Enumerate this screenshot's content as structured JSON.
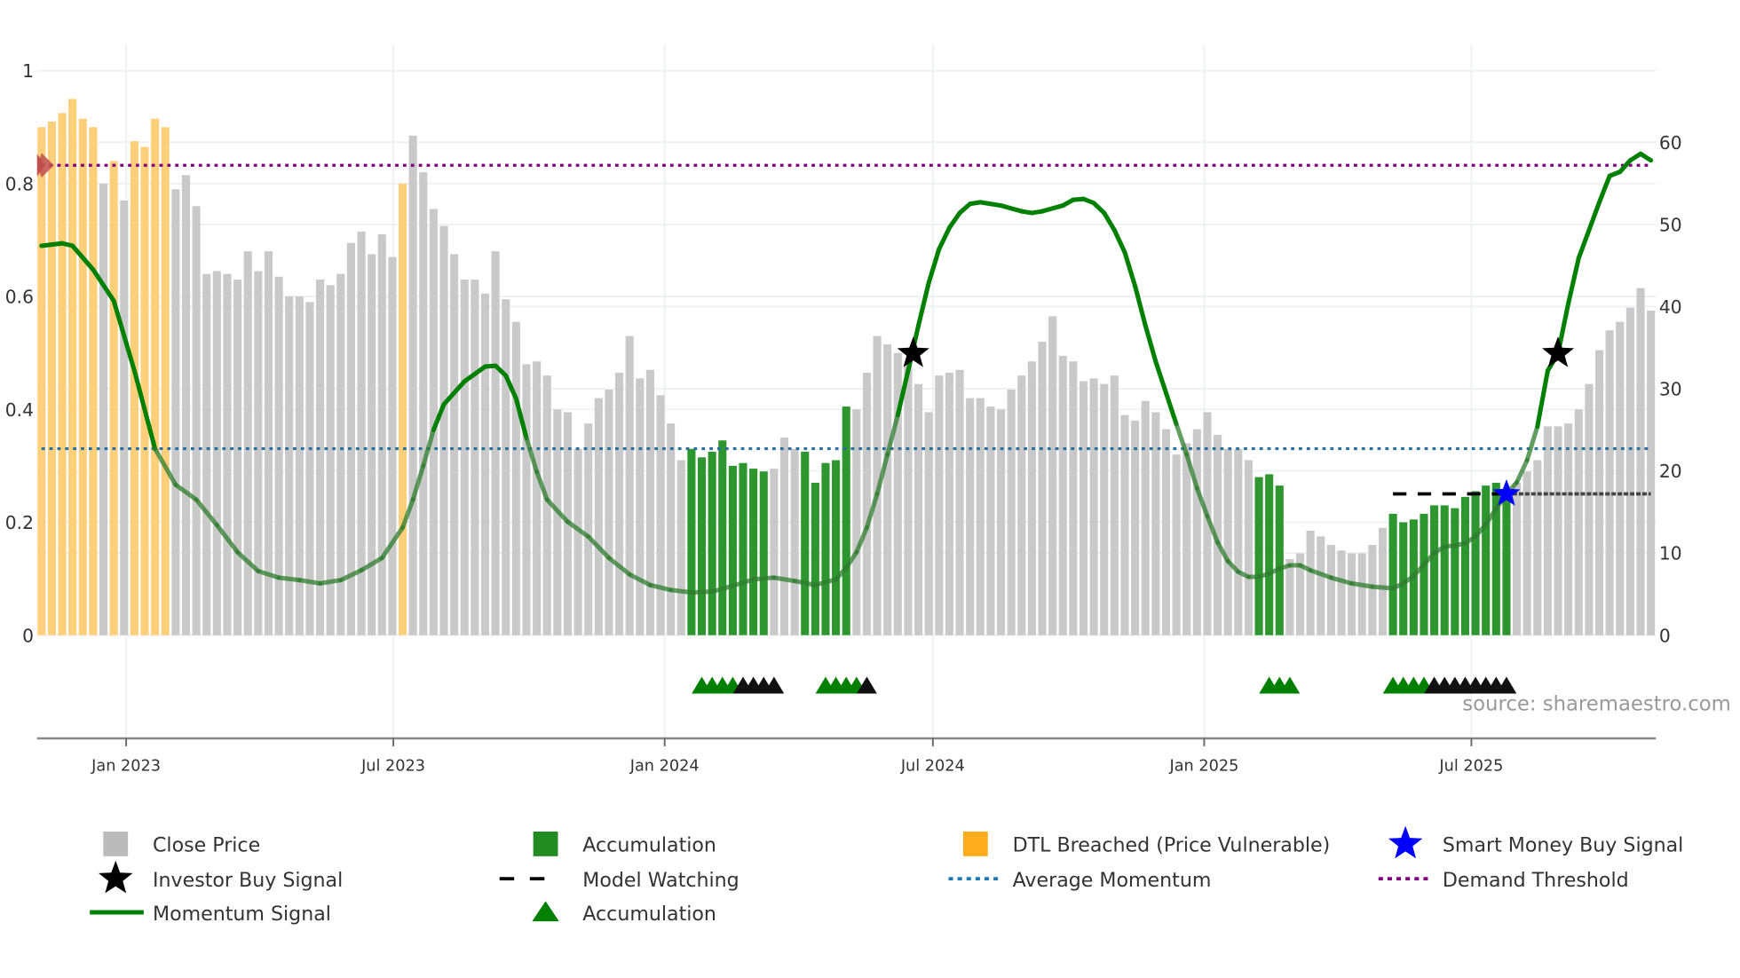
{
  "chart_data": {
    "type": "bar",
    "title": "",
    "source": "source: sharemaestro.com",
    "left_axis": {
      "ticks": [
        "0",
        "0.2",
        "0.4",
        "0.6",
        "0.8",
        "1"
      ],
      "range": [
        0,
        1
      ]
    },
    "right_axis": {
      "ticks": [
        "0",
        "10",
        "20",
        "30",
        "40",
        "50",
        "60"
      ],
      "range": [
        0,
        60
      ]
    },
    "x_axis": {
      "unit": "week index",
      "ticks": [
        {
          "label": "Jan 2023",
          "at": 8.2
        },
        {
          "label": "Jul 2023",
          "at": 34.1
        },
        {
          "label": "Jan 2024",
          "at": 60.4
        },
        {
          "label": "Jul 2024",
          "at": 86.4
        },
        {
          "label": "Jan 2025",
          "at": 112.7
        },
        {
          "label": "Jul 2025",
          "at": 138.6
        }
      ]
    },
    "bar_type_key": {
      "c": "Close Price",
      "a": "Accumulation",
      "d": "DTL Breached (Price Vulnerable)"
    },
    "bars": {
      "values": [
        0.9,
        0.91,
        0.925,
        0.95,
        0.915,
        0.9,
        0.8,
        0.84,
        0.77,
        0.875,
        0.865,
        0.915,
        0.9,
        0.79,
        0.815,
        0.76,
        0.64,
        0.645,
        0.64,
        0.63,
        0.68,
        0.645,
        0.68,
        0.635,
        0.6,
        0.6,
        0.59,
        0.63,
        0.62,
        0.64,
        0.695,
        0.715,
        0.675,
        0.71,
        0.67,
        0.8,
        0.885,
        0.82,
        0.755,
        0.725,
        0.675,
        0.63,
        0.63,
        0.605,
        0.68,
        0.595,
        0.555,
        0.48,
        0.485,
        0.46,
        0.4,
        0.395,
        0.33,
        0.375,
        0.42,
        0.435,
        0.465,
        0.53,
        0.455,
        0.47,
        0.425,
        0.375,
        0.31,
        0.33,
        0.315,
        0.325,
        0.345,
        0.3,
        0.305,
        0.295,
        0.29,
        0.295,
        0.35,
        0.33,
        0.325,
        0.27,
        0.305,
        0.31,
        0.405,
        0.4,
        0.465,
        0.53,
        0.515,
        0.5,
        0.48,
        0.445,
        0.395,
        0.46,
        0.465,
        0.47,
        0.42,
        0.42,
        0.405,
        0.4,
        0.435,
        0.46,
        0.485,
        0.52,
        0.565,
        0.495,
        0.485,
        0.45,
        0.455,
        0.445,
        0.46,
        0.39,
        0.38,
        0.415,
        0.395,
        0.365,
        0.32,
        0.34,
        0.365,
        0.395,
        0.355,
        0.33,
        0.33,
        0.31,
        0.28,
        0.285,
        0.265,
        0.135,
        0.145,
        0.185,
        0.175,
        0.16,
        0.15,
        0.145,
        0.145,
        0.16,
        0.19,
        0.215,
        0.2,
        0.205,
        0.215,
        0.23,
        0.23,
        0.225,
        0.245,
        0.255,
        0.265,
        0.27,
        0.25,
        0.27,
        0.29,
        0.31,
        0.37,
        0.37,
        0.375,
        0.4,
        0.445,
        0.505,
        0.54,
        0.555,
        0.58,
        0.615,
        0.575
      ],
      "types": "ddddddcdcddddccccccccccccccccccccccdcccccccccccccccccccccccccccaaaaaaaacccaaaaacccccccccccccccccccccccccccccccccccccccaaaccccccccccaaaaaaaaaaaacccccccccccccc"
    },
    "series": [
      {
        "name": "Momentum Signal",
        "axis": "right",
        "x": [
          0,
          2,
          3,
          5,
          7,
          9,
          11,
          13,
          15,
          17,
          19,
          21,
          23,
          25,
          27,
          29,
          31,
          33,
          35,
          36,
          37,
          38,
          39,
          41,
          43,
          44,
          45,
          46,
          47,
          48,
          49,
          51,
          53,
          55,
          57,
          59,
          61,
          63,
          65,
          67,
          69,
          71,
          73,
          75,
          77,
          78,
          79,
          80,
          81,
          82,
          83,
          84,
          85,
          86,
          87,
          88,
          89,
          90,
          91,
          93,
          95,
          96,
          97,
          99,
          100,
          101,
          102,
          103,
          104,
          105,
          106,
          107,
          108,
          109,
          110,
          111,
          112,
          113,
          114,
          115,
          116,
          117,
          118,
          119,
          120,
          121,
          122,
          123,
          125,
          127,
          129,
          131,
          132,
          133,
          134,
          135,
          136,
          137,
          138,
          139,
          140,
          141,
          142,
          143,
          144,
          145,
          146,
          147,
          148,
          149,
          150,
          151,
          152,
          153,
          154,
          155,
          156
        ],
        "y": [
          47.4,
          47.7,
          47.4,
          44.5,
          40.7,
          32.2,
          22.7,
          18.3,
          16.5,
          13.4,
          10.1,
          7.8,
          7.0,
          6.7,
          6.3,
          6.7,
          7.9,
          9.4,
          13.1,
          16.5,
          20.6,
          25.0,
          28.1,
          30.9,
          32.7,
          32.8,
          31.6,
          28.8,
          24.0,
          19.9,
          16.5,
          13.8,
          12.0,
          9.4,
          7.4,
          6.1,
          5.5,
          5.2,
          5.3,
          6.0,
          6.8,
          7.0,
          6.6,
          6.1,
          6.8,
          8.2,
          10.1,
          13.1,
          17.2,
          22.0,
          26.8,
          32.2,
          37.7,
          42.9,
          47.0,
          49.6,
          51.4,
          52.5,
          52.7,
          52.3,
          51.6,
          51.4,
          51.6,
          52.3,
          53.0,
          53.1,
          52.6,
          51.4,
          49.3,
          46.6,
          42.5,
          37.7,
          33.3,
          29.5,
          25.7,
          22.0,
          17.9,
          14.5,
          11.3,
          9.0,
          7.7,
          7.1,
          7.1,
          7.5,
          8.1,
          8.5,
          8.5,
          7.9,
          7.0,
          6.3,
          5.9,
          5.7,
          6.3,
          7.2,
          8.6,
          10.0,
          10.8,
          10.9,
          11.2,
          12.0,
          13.5,
          15.4,
          17.2,
          18.6,
          21.3,
          25.4,
          32.2,
          34.3,
          40.4,
          45.9,
          49.3,
          52.7,
          55.9,
          56.4,
          57.8,
          58.6,
          57.8
        ]
      },
      {
        "name": "Average Momentum",
        "axis": "right",
        "value": 22.7
      },
      {
        "name": "Demand Threshold",
        "axis": "right",
        "value": 57.2
      },
      {
        "name": "Model Watching",
        "axis": "right",
        "value": 17.2,
        "x_range": [
          131,
          142
        ],
        "continued_to": 156
      },
      {
        "name": "Investor Buy Signal",
        "axis": "right",
        "points": [
          [
            84.5,
            34.3
          ],
          [
            147,
            34.3
          ]
        ]
      },
      {
        "name": "Smart Money Buy Signal",
        "axis": "right",
        "points": [
          [
            142,
            17.2
          ]
        ]
      },
      {
        "name": "Accumulation",
        "marker": "triangle",
        "green": [
          64,
          65,
          66,
          67,
          76,
          77,
          78,
          79,
          119,
          120,
          121,
          131,
          132,
          133,
          134
        ],
        "black": [
          68,
          69,
          70,
          71,
          80,
          135,
          136,
          137,
          138,
          139,
          140,
          141,
          142
        ]
      }
    ],
    "legend": {
      "placement": "bottom",
      "items": [
        {
          "label": "Close Price",
          "icon": "gray-square",
          "color": "#bbbbbb"
        },
        {
          "label": "Accumulation",
          "icon": "green-square",
          "color": "#228b22"
        },
        {
          "label": "DTL Breached (Price Vulnerable)",
          "icon": "orange-square",
          "color": "#ffad1f"
        },
        {
          "label": "Smart Money Buy Signal",
          "icon": "blue-star",
          "color": "#0000ff"
        },
        {
          "label": "Investor Buy Signal",
          "icon": "black-star",
          "color": "#000000"
        },
        {
          "label": "Model Watching",
          "icon": "dashed-line",
          "color": "#000000"
        },
        {
          "label": "Average Momentum",
          "icon": "dotted-line",
          "color": "#1f77b4"
        },
        {
          "label": "Demand Threshold",
          "icon": "dotted-line",
          "color": "#800080"
        },
        {
          "label": "Momentum Signal",
          "icon": "solid-line",
          "color": "#008000"
        },
        {
          "label": "Accumulation",
          "icon": "green-triangle",
          "color": "#008000"
        }
      ]
    },
    "colors": {
      "close": "#c9c9c9",
      "accum": "#2e962e",
      "dtl": "#ffcf7a",
      "momentum": "#008000",
      "avg": "#2a6f9e",
      "demand": "#800080",
      "marker_red": "#c0504d"
    }
  }
}
